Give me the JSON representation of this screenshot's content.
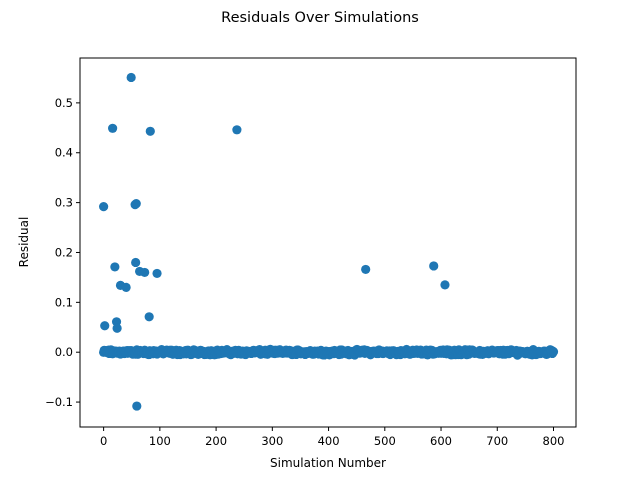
{
  "chart_data": {
    "type": "scatter",
    "title": "Residuals Over Simulations",
    "xlabel": "Simulation Number",
    "ylabel": "Residual",
    "xlim": [
      -42,
      840
    ],
    "ylim": [
      -0.15,
      0.59
    ],
    "x_ticks": [
      0,
      100,
      200,
      300,
      400,
      500,
      600,
      700,
      800
    ],
    "x_tick_labels": [
      "0",
      "100",
      "200",
      "300",
      "400",
      "500",
      "600",
      "700",
      "800"
    ],
    "y_ticks": [
      -0.1,
      0.0,
      0.1,
      0.2,
      0.3,
      0.4,
      0.5
    ],
    "y_tick_labels": [
      "−0.1",
      "0.0",
      "0.1",
      "0.2",
      "0.3",
      "0.4",
      "0.5"
    ],
    "grid": false,
    "marker_color": "#1f77b4",
    "outliers": {
      "x": [
        0,
        2,
        16,
        20,
        23,
        24,
        30,
        40,
        49,
        56,
        57,
        58,
        59,
        64,
        73,
        81,
        83,
        95,
        237,
        466,
        587,
        607
      ],
      "y": [
        0.292,
        0.053,
        0.449,
        0.171,
        0.061,
        0.048,
        0.134,
        0.13,
        0.551,
        0.296,
        0.18,
        0.298,
        -0.108,
        0.162,
        0.16,
        0.071,
        0.443,
        0.158,
        0.446,
        0.166,
        0.173,
        0.135
      ]
    },
    "cluster": {
      "x_range": [
        0,
        800
      ],
      "count": 800,
      "y_approx": 0.0,
      "spread": 0.006
    }
  }
}
